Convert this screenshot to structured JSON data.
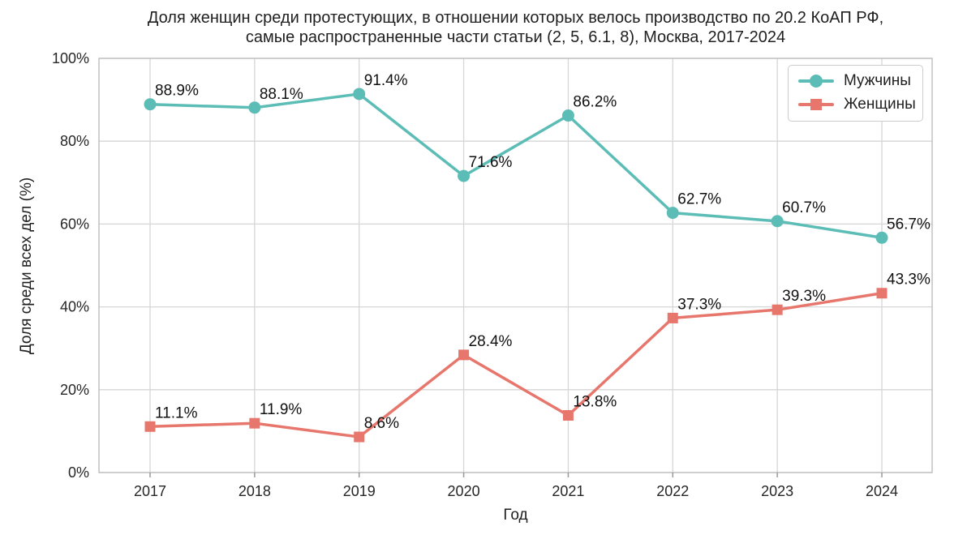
{
  "figure": {
    "title_line1": "Доля женщин среди протестующих, в отношении которых велось производство по 20.2 КоАП РФ,",
    "title_line2": "самые распространенные части статьи (2, 5, 6.1, 8), Москва, 2017-2024",
    "xlabel": "Год",
    "ylabel": "Доля среди всех дел (%)"
  },
  "chart_data": {
    "type": "line",
    "title": "Доля женщин среди протестующих, в отношении которых велось производство по 20.2 КоАП РФ, самые распространенные части статьи (2, 5, 6.1, 8), Москва, 2017-2024",
    "xlabel": "Год",
    "ylabel": "Доля среди всех дел (%)",
    "categories": [
      "2017",
      "2018",
      "2019",
      "2020",
      "2021",
      "2022",
      "2023",
      "2024"
    ],
    "series": [
      {
        "name": "Мужчины",
        "marker": "circle",
        "color": "#5cbcb6",
        "values": [
          88.9,
          88.1,
          91.4,
          71.6,
          86.2,
          62.7,
          60.7,
          56.7
        ],
        "labels": [
          "88.9%",
          "88.1%",
          "91.4%",
          "71.6%",
          "86.2%",
          "62.7%",
          "60.7%",
          "56.7%"
        ]
      },
      {
        "name": "Женщины",
        "marker": "square",
        "color": "#e7766c",
        "values": [
          11.1,
          11.9,
          8.6,
          28.4,
          13.8,
          37.3,
          39.3,
          43.3
        ],
        "labels": [
          "11.1%",
          "11.9%",
          "8.6%",
          "28.4%",
          "13.8%",
          "37.3%",
          "39.3%",
          "43.3%"
        ]
      }
    ],
    "y_ticks": [
      {
        "value": 0,
        "label": "0%"
      },
      {
        "value": 20,
        "label": "20%"
      },
      {
        "value": 40,
        "label": "40%"
      },
      {
        "value": 60,
        "label": "60%"
      },
      {
        "value": 80,
        "label": "80%"
      },
      {
        "value": 100,
        "label": "100%"
      }
    ],
    "ylim": [
      0,
      100
    ],
    "grid": true,
    "legend_position": "upper right",
    "colors": {
      "grid": "#d6d6d6",
      "frame": "#bdbdbd",
      "tick": "#999999",
      "tick_text": "#262626",
      "label_text": "#111111",
      "background": "#ffffff"
    }
  }
}
